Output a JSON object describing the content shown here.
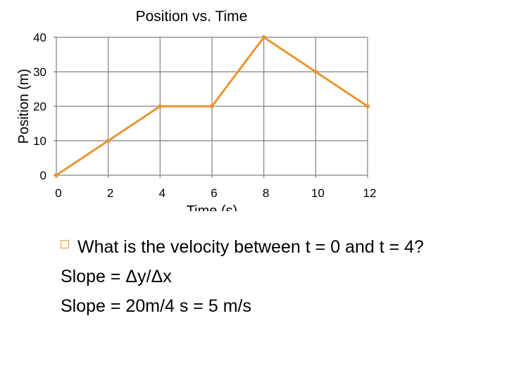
{
  "chart_data": {
    "type": "line",
    "title": "Position vs. Time",
    "xlabel": "Time (s)",
    "ylabel": "Position (m)",
    "x": [
      0,
      2,
      4,
      6,
      8,
      10,
      12
    ],
    "y": [
      0,
      10,
      20,
      20,
      40,
      30,
      20
    ],
    "xlim": [
      0,
      12
    ],
    "ylim": [
      0,
      40
    ],
    "xticks": [
      0,
      2,
      4,
      6,
      8,
      10,
      12
    ],
    "yticks": [
      0,
      10,
      20,
      30,
      40
    ],
    "grid": true,
    "line_color": "#e8962f",
    "grid_color": "#808080"
  },
  "slide": {
    "question": "What is the velocity between t = 0 and t = 4?",
    "line2": "Slope = Δy/Δx",
    "line3": "Slope = 20m/4 s = 5 m/s"
  },
  "colors": {
    "accent": "#e8962f"
  },
  "icons": {
    "bullet": "square-bullet-icon"
  }
}
